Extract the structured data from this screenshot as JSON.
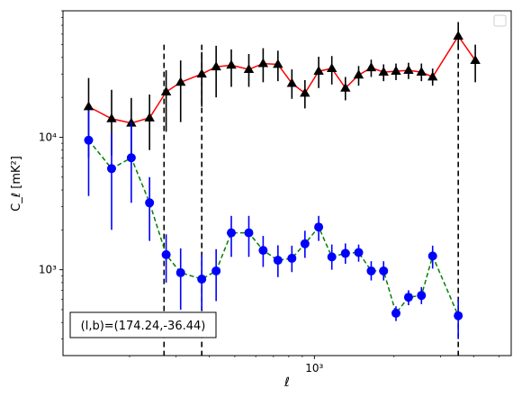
{
  "chart_data": {
    "type": "scatter",
    "title": "",
    "xlabel": "ℓ",
    "ylabel": "C_ℓ  [mK²]",
    "xscale": "log",
    "yscale": "log",
    "xlim": [
      112,
      5550
    ],
    "ylim": [
      225,
      90000
    ],
    "x_tick_labels": [
      {
        "value": 1000,
        "label": "10³"
      }
    ],
    "y_tick_labels": [
      {
        "value": 1000,
        "label": "10³"
      },
      {
        "value": 10000,
        "label": "10⁴"
      }
    ],
    "grid": false,
    "legend": {
      "position": "top-right",
      "entries": []
    },
    "annotation": "(l,b)=(174.24,-36.44)",
    "vlines": [
      {
        "x": 270,
        "y_top": 50000
      },
      {
        "x": 375,
        "y_top": 50000
      },
      {
        "x": 3500,
        "y_top": 50000
      }
    ],
    "series": [
      {
        "name": "",
        "color": "#ff0000",
        "marker": "triangle",
        "marker_color": "#000000",
        "line_style": "solid",
        "x": [
          140,
          171,
          203,
          238,
          275,
          312,
          375,
          425,
          485,
          565,
          640,
          728,
          822,
          921,
          1038,
          1164,
          1310,
          1470,
          1640,
          1827,
          2035,
          2270,
          2540,
          2800,
          3500,
          4060,
          4580
        ],
        "y": [
          17000,
          13800,
          12800,
          14000,
          22000,
          26000,
          30000,
          34000,
          35000,
          32500,
          36000,
          35500,
          25500,
          21500,
          31500,
          33000,
          23500,
          29500,
          33500,
          31000,
          31500,
          32000,
          31000,
          28500,
          58000,
          38000,
          0
        ],
        "err_lo": [
          10000,
          6500,
          5800,
          6000,
          11000,
          13000,
          13000,
          14000,
          11000,
          8500,
          10000,
          9000,
          6000,
          5000,
          8000,
          8000,
          4500,
          5000,
          5000,
          4500,
          4500,
          4500,
          4500,
          4000,
          11000,
          12000,
          0
        ],
        "err_hi": [
          11000,
          9000,
          7000,
          7000,
          10000,
          12000,
          14000,
          15000,
          11000,
          10000,
          11000,
          9500,
          7000,
          5500,
          9000,
          8000,
          5000,
          5000,
          5000,
          4500,
          4500,
          4500,
          5000,
          4500,
          16000,
          12000,
          0
        ]
      },
      {
        "name": "",
        "color": "#008000",
        "marker": "circle",
        "marker_color": "#0000ff",
        "line_style": "dashed",
        "x": [
          140,
          171,
          203,
          238,
          275,
          312,
          375,
          425,
          485,
          565,
          640,
          728,
          822,
          921,
          1038,
          1164,
          1310,
          1470,
          1640,
          1827,
          2035,
          2270,
          2540,
          2800,
          3500,
          4060
        ],
        "y": [
          9500,
          5800,
          7000,
          3200,
          1300,
          950,
          850,
          980,
          1900,
          1900,
          1400,
          1180,
          1220,
          1570,
          2100,
          1250,
          1330,
          1350,
          980,
          980,
          470,
          620,
          640,
          1270,
          450,
          0
        ],
        "err_lo": [
          5900,
          3800,
          3800,
          1550,
          500,
          450,
          350,
          400,
          650,
          650,
          350,
          300,
          260,
          340,
          450,
          250,
          220,
          200,
          150,
          150,
          60,
          80,
          90,
          250,
          150,
          0
        ],
        "err_hi": [
          6500,
          5000,
          6000,
          1800,
          550,
          500,
          450,
          450,
          650,
          650,
          400,
          350,
          300,
          400,
          450,
          300,
          250,
          200,
          180,
          180,
          60,
          80,
          100,
          250,
          150,
          0
        ]
      }
    ]
  }
}
